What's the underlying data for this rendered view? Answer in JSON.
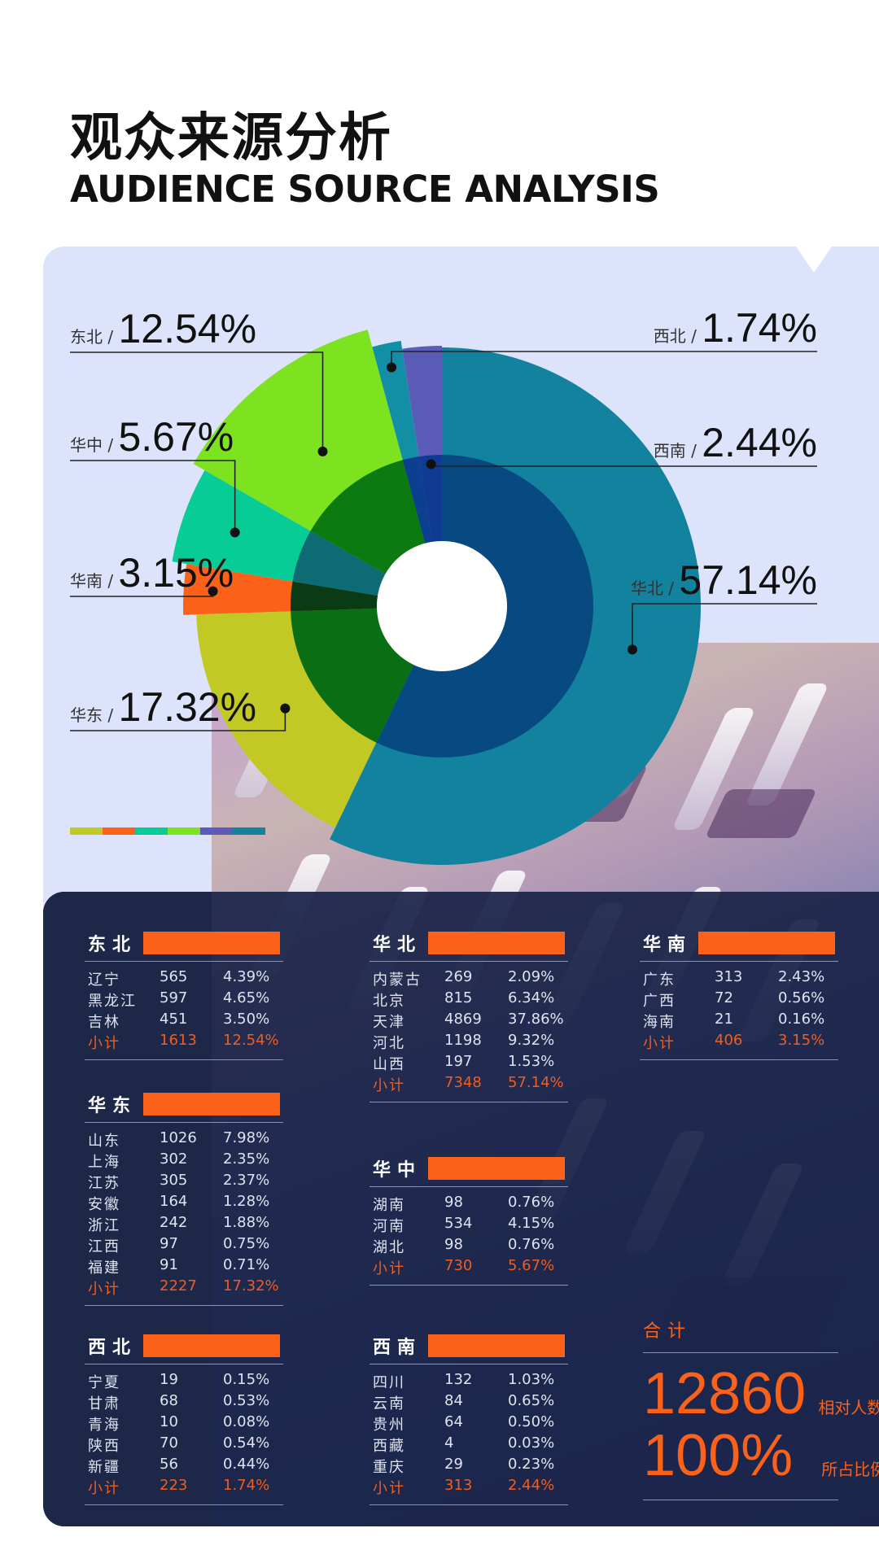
{
  "header": {
    "title_cn": "观众来源分析",
    "title_en": "AUDIENCE SOURCE ANALYSIS"
  },
  "chart_data": {
    "type": "pie",
    "title": "",
    "slices": [
      {
        "name": "华北",
        "label": "华北 /",
        "value": 57.14,
        "pct_text": "57.14%",
        "color": "#12829f"
      },
      {
        "name": "华东",
        "label": "华东 /",
        "value": 17.32,
        "pct_text": "17.32%",
        "color": "#c2c824"
      },
      {
        "name": "华南",
        "label": "华南 /",
        "value": 3.15,
        "pct_text": "3.15%",
        "color": "#fb6118"
      },
      {
        "name": "华中",
        "label": "华中 /",
        "value": 5.67,
        "pct_text": "5.67%",
        "color": "#08cc96"
      },
      {
        "name": "东北",
        "label": "东北 /",
        "value": 12.54,
        "pct_text": "12.54%",
        "color": "#7de220"
      },
      {
        "name": "西北",
        "label": "西北 /",
        "value": 1.74,
        "pct_text": "1.74%",
        "color": "#138fa5"
      },
      {
        "name": "西南",
        "label": "西南 /",
        "value": 2.44,
        "pct_text": "2.44%",
        "color": "#5a5cb8"
      }
    ],
    "legend": "none"
  },
  "legend_strip_colors": [
    "#c2c824",
    "#fb6118",
    "#08cc96",
    "#7de220",
    "#5a5cb8",
    "#12829f"
  ],
  "tables": {
    "dongbei": {
      "title": "东北",
      "rows": [
        {
          "province": "辽宁",
          "count": "565",
          "pct": "4.39%"
        },
        {
          "province": "黑龙江",
          "count": "597",
          "pct": "4.65%"
        },
        {
          "province": "吉林",
          "count": "451",
          "pct": "3.50%"
        }
      ],
      "subtotal": {
        "label": "小计",
        "count": "1613",
        "pct": "12.54%"
      }
    },
    "huabei": {
      "title": "华北",
      "rows": [
        {
          "province": "内蒙古",
          "count": "269",
          "pct": "2.09%"
        },
        {
          "province": "北京",
          "count": "815",
          "pct": "6.34%"
        },
        {
          "province": "天津",
          "count": "4869",
          "pct": "37.86%"
        },
        {
          "province": "河北",
          "count": "1198",
          "pct": "9.32%"
        },
        {
          "province": "山西",
          "count": "197",
          "pct": "1.53%"
        }
      ],
      "subtotal": {
        "label": "小计",
        "count": "7348",
        "pct": "57.14%"
      }
    },
    "huanan": {
      "title": "华南",
      "rows": [
        {
          "province": "广东",
          "count": "313",
          "pct": "2.43%"
        },
        {
          "province": "广西",
          "count": "72",
          "pct": "0.56%"
        },
        {
          "province": "海南",
          "count": "21",
          "pct": "0.16%"
        }
      ],
      "subtotal": {
        "label": "小计",
        "count": "406",
        "pct": "3.15%"
      }
    },
    "huadong": {
      "title": "华东",
      "rows": [
        {
          "province": "山东",
          "count": "1026",
          "pct": "7.98%"
        },
        {
          "province": "上海",
          "count": "302",
          "pct": "2.35%"
        },
        {
          "province": "江苏",
          "count": "305",
          "pct": "2.37%"
        },
        {
          "province": "安徽",
          "count": "164",
          "pct": "1.28%"
        },
        {
          "province": "浙江",
          "count": "242",
          "pct": "1.88%"
        },
        {
          "province": "江西",
          "count": "97",
          "pct": "0.75%"
        },
        {
          "province": "福建",
          "count": "91",
          "pct": "0.71%"
        }
      ],
      "subtotal": {
        "label": "小计",
        "count": "2227",
        "pct": "17.32%"
      }
    },
    "huazhong": {
      "title": "华中",
      "rows": [
        {
          "province": "湖南",
          "count": "98",
          "pct": "0.76%"
        },
        {
          "province": "河南",
          "count": "534",
          "pct": "4.15%"
        },
        {
          "province": "湖北",
          "count": "98",
          "pct": "0.76%"
        }
      ],
      "subtotal": {
        "label": "小计",
        "count": "730",
        "pct": "5.67%"
      }
    },
    "xibei": {
      "title": "西北",
      "rows": [
        {
          "province": "宁夏",
          "count": "19",
          "pct": "0.15%"
        },
        {
          "province": "甘肃",
          "count": "68",
          "pct": "0.53%"
        },
        {
          "province": "青海",
          "count": "10",
          "pct": "0.08%"
        },
        {
          "province": "陕西",
          "count": "70",
          "pct": "0.54%"
        },
        {
          "province": "新疆",
          "count": "56",
          "pct": "0.44%"
        }
      ],
      "subtotal": {
        "label": "小计",
        "count": "223",
        "pct": "1.74%"
      }
    },
    "xinan": {
      "title": "西南",
      "rows": [
        {
          "province": "四川",
          "count": "132",
          "pct": "1.03%"
        },
        {
          "province": "云南",
          "count": "84",
          "pct": "0.65%"
        },
        {
          "province": "贵州",
          "count": "64",
          "pct": "0.50%"
        },
        {
          "province": "西藏",
          "count": "4",
          "pct": "0.03%"
        },
        {
          "province": "重庆",
          "count": "29",
          "pct": "0.23%"
        }
      ],
      "subtotal": {
        "label": "小计",
        "count": "313",
        "pct": "2.44%"
      }
    }
  },
  "total": {
    "label": "合计",
    "count": "12860",
    "count_label": "相对人数",
    "pct": "100%",
    "pct_label": "所占比例"
  }
}
